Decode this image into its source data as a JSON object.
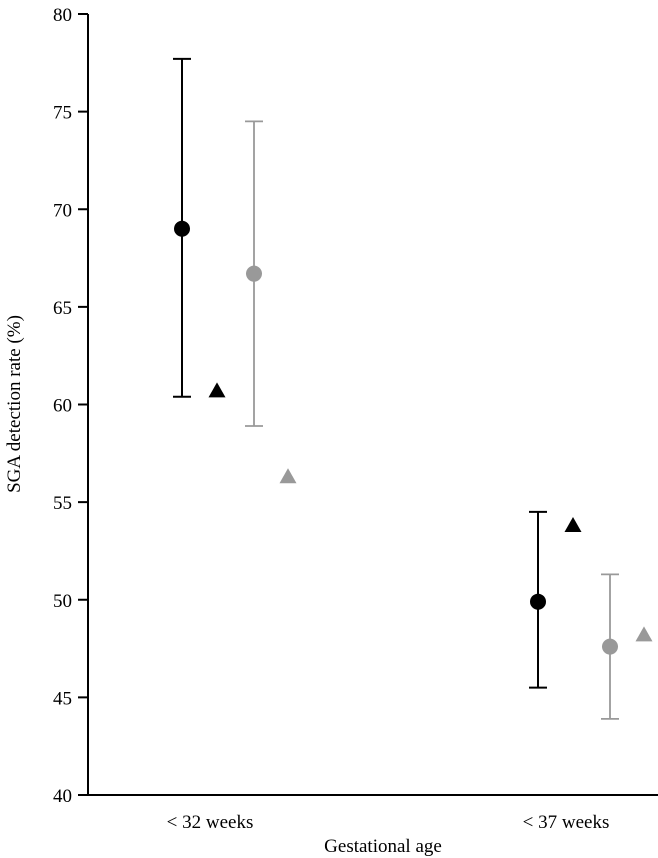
{
  "chart_data": {
    "type": "scatter",
    "xlabel": "Gestational age",
    "ylabel": "SGA detection rate (%)",
    "categories": [
      "< 32 weeks",
      "< 37 weeks"
    ],
    "ylim": [
      40,
      80
    ],
    "yticks": [
      40,
      45,
      50,
      55,
      60,
      65,
      70,
      75,
      80
    ],
    "grid": false,
    "legend": "none",
    "series": [
      {
        "marker": "circle",
        "color": "#000000",
        "values": [
          69.0,
          49.9
        ],
        "ci_low": [
          60.4,
          45.5
        ],
        "ci_high": [
          77.7,
          54.5
        ]
      },
      {
        "marker": "triangle",
        "color": "#000000",
        "values": [
          60.7,
          53.8
        ]
      },
      {
        "marker": "circle",
        "color": "#999999",
        "values": [
          66.7,
          47.6
        ],
        "ci_low": [
          58.9,
          43.9
        ],
        "ci_high": [
          74.5,
          51.3
        ]
      },
      {
        "marker": "triangle",
        "color": "#999999",
        "values": [
          56.3,
          48.2
        ]
      }
    ]
  }
}
